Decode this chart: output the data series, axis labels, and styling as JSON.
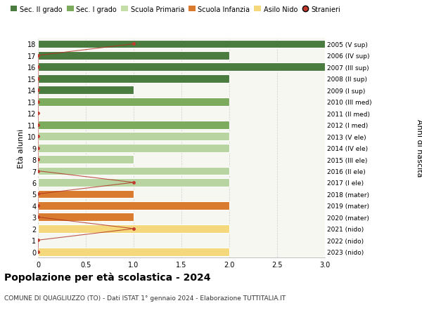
{
  "ages": [
    18,
    17,
    16,
    15,
    14,
    13,
    12,
    11,
    10,
    9,
    8,
    7,
    6,
    5,
    4,
    3,
    2,
    1,
    0
  ],
  "right_labels": [
    "2005 (V sup)",
    "2006 (IV sup)",
    "2007 (III sup)",
    "2008 (II sup)",
    "2009 (I sup)",
    "2010 (III med)",
    "2011 (II med)",
    "2012 (I med)",
    "2013 (V ele)",
    "2014 (IV ele)",
    "2015 (III ele)",
    "2016 (II ele)",
    "2017 (I ele)",
    "2018 (mater)",
    "2019 (mater)",
    "2020 (mater)",
    "2021 (nido)",
    "2022 (nido)",
    "2023 (nido)"
  ],
  "bar_values": [
    3,
    2,
    3,
    2,
    1,
    2,
    0,
    2,
    2,
    2,
    1,
    2,
    2,
    1,
    2,
    1,
    2,
    0,
    2
  ],
  "bar_colors": [
    "#4a7c3f",
    "#4a7c3f",
    "#4a7c3f",
    "#4a7c3f",
    "#4a7c3f",
    "#7dab5e",
    "#7dab5e",
    "#7dab5e",
    "#b8d4a0",
    "#b8d4a0",
    "#b8d4a0",
    "#b8d4a0",
    "#b8d4a0",
    "#d97b2e",
    "#d97b2e",
    "#d97b2e",
    "#f5d87c",
    "#f5d87c",
    "#f5d87c"
  ],
  "stranieri_ages": [
    18,
    17,
    16,
    15,
    14,
    13,
    12,
    11,
    10,
    9,
    8,
    7,
    6,
    5,
    4,
    3,
    2,
    1,
    0
  ],
  "stranieri_values": [
    1,
    0,
    0,
    0,
    0,
    0,
    0,
    0,
    0,
    0,
    0,
    0,
    1,
    0,
    0,
    0,
    1,
    0,
    0
  ],
  "legend_labels": [
    "Sec. II grado",
    "Sec. I grado",
    "Scuola Primaria",
    "Scuola Infanzia",
    "Asilo Nido",
    "Stranieri"
  ],
  "legend_colors": [
    "#4a7c3f",
    "#7dab5e",
    "#c5dea8",
    "#d97b2e",
    "#f5d87c",
    "#c0392b"
  ],
  "title": "Popolazione per età scolastica - 2024",
  "subtitle": "COMUNE DI QUAGLIUZZO (TO) - Dati ISTAT 1° gennaio 2024 - Elaborazione TUTTITALIA.IT",
  "ylabel_left": "Età alunni",
  "ylabel_right": "Anni di nascita",
  "xlim": [
    0,
    3.0
  ],
  "bg_color": "#ffffff",
  "plot_bg": "#f7f7f2",
  "grid_color": "#d0d0d0",
  "bar_height": 0.72
}
